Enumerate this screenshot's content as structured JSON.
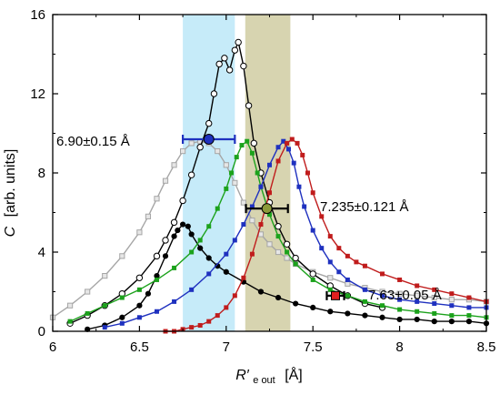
{
  "chart_data": {
    "type": "scatter",
    "xlabel": {
      "main": "R′",
      "sub": "e out",
      "unit": "[Å]"
    },
    "ylabel": {
      "main": "C",
      "unit": "[arb. units]"
    },
    "xlim": [
      6.0,
      8.5
    ],
    "ylim": [
      0,
      16
    ],
    "x_ticks": [
      "6",
      "6.5",
      "7",
      "7.5",
      "8",
      "8.5"
    ],
    "y_ticks": [
      "0",
      "4",
      "8",
      "12",
      "16"
    ],
    "bands": [
      {
        "x0": 6.75,
        "x1": 7.05,
        "color": "#c6ebf9"
      },
      {
        "x0": 7.11,
        "x1": 7.37,
        "color": "#d7d4b0"
      }
    ],
    "series": [
      {
        "color": "#a6a6a6",
        "marker": "square-open",
        "x": [
          6.0,
          6.1,
          6.2,
          6.3,
          6.4,
          6.5,
          6.55,
          6.6,
          6.65,
          6.7,
          6.75,
          6.8,
          6.85,
          6.9,
          6.95,
          7.0,
          7.05,
          7.1,
          7.15,
          7.2,
          7.25,
          7.3,
          7.35,
          7.4,
          7.5,
          7.6,
          7.7,
          7.8,
          7.9,
          8.0,
          8.1,
          8.2,
          8.3,
          8.4,
          8.5
        ],
        "y": [
          0.7,
          1.3,
          2.0,
          2.8,
          3.8,
          5.0,
          5.8,
          6.7,
          7.6,
          8.4,
          9.1,
          9.5,
          9.6,
          9.5,
          9.1,
          8.4,
          7.5,
          6.5,
          5.6,
          4.9,
          4.4,
          4.0,
          3.7,
          3.4,
          3.0,
          2.7,
          2.4,
          2.2,
          2.0,
          1.9,
          1.8,
          1.7,
          1.6,
          1.6,
          1.5
        ]
      },
      {
        "color": "#000000",
        "marker": "circle-filled",
        "x": [
          6.2,
          6.3,
          6.4,
          6.5,
          6.55,
          6.6,
          6.65,
          6.7,
          6.72,
          6.75,
          6.78,
          6.8,
          6.85,
          6.9,
          6.95,
          7.0,
          7.1,
          7.2,
          7.3,
          7.4,
          7.5,
          7.6,
          7.7,
          7.8,
          7.9,
          8.0,
          8.1,
          8.2,
          8.3,
          8.4,
          8.5
        ],
        "y": [
          0.1,
          0.3,
          0.7,
          1.3,
          1.9,
          2.8,
          3.8,
          4.8,
          5.1,
          5.4,
          5.3,
          4.9,
          4.2,
          3.7,
          3.3,
          3.0,
          2.5,
          2.0,
          1.7,
          1.4,
          1.2,
          1.0,
          0.9,
          0.8,
          0.7,
          0.6,
          0.6,
          0.5,
          0.5,
          0.5,
          0.4
        ]
      },
      {
        "color": "#000000",
        "marker": "circle-open",
        "x": [
          6.1,
          6.2,
          6.3,
          6.4,
          6.5,
          6.6,
          6.65,
          6.7,
          6.75,
          6.8,
          6.85,
          6.9,
          6.93,
          6.96,
          6.99,
          7.02,
          7.05,
          7.07,
          7.1,
          7.13,
          7.16,
          7.2,
          7.25,
          7.3,
          7.35,
          7.4,
          7.5,
          7.6,
          7.7,
          7.8,
          7.9
        ],
        "y": [
          0.4,
          0.8,
          1.3,
          1.9,
          2.7,
          3.8,
          4.6,
          5.5,
          6.6,
          7.9,
          9.3,
          10.5,
          12.0,
          13.5,
          13.8,
          13.2,
          14.2,
          14.6,
          13.4,
          11.4,
          9.5,
          8.0,
          6.5,
          5.3,
          4.4,
          3.7,
          2.9,
          2.3,
          1.8,
          1.4,
          1.2
        ]
      },
      {
        "color": "#1ca21c",
        "marker": "square-filled",
        "x": [
          6.1,
          6.2,
          6.3,
          6.4,
          6.5,
          6.6,
          6.7,
          6.8,
          6.85,
          6.9,
          6.95,
          7.0,
          7.03,
          7.06,
          7.09,
          7.12,
          7.15,
          7.18,
          7.2,
          7.25,
          7.3,
          7.35,
          7.4,
          7.5,
          7.6,
          7.7,
          7.8,
          7.9,
          8.0,
          8.1,
          8.2,
          8.3,
          8.4,
          8.5
        ],
        "y": [
          0.5,
          0.9,
          1.3,
          1.7,
          2.1,
          2.6,
          3.2,
          4.0,
          4.6,
          5.3,
          6.2,
          7.2,
          8.0,
          8.8,
          9.4,
          9.6,
          9.0,
          8.0,
          7.3,
          5.9,
          4.8,
          4.0,
          3.4,
          2.6,
          2.1,
          1.8,
          1.5,
          1.3,
          1.1,
          1.0,
          0.9,
          0.8,
          0.8,
          0.7
        ]
      },
      {
        "color": "#1f31bf",
        "marker": "square-filled",
        "x": [
          6.3,
          6.4,
          6.5,
          6.6,
          6.7,
          6.8,
          6.9,
          7.0,
          7.05,
          7.1,
          7.15,
          7.2,
          7.25,
          7.3,
          7.33,
          7.36,
          7.39,
          7.42,
          7.45,
          7.5,
          7.55,
          7.6,
          7.65,
          7.7,
          7.8,
          7.9,
          8.0,
          8.1,
          8.2,
          8.3,
          8.4,
          8.5
        ],
        "y": [
          0.2,
          0.4,
          0.7,
          1.0,
          1.5,
          2.1,
          2.9,
          3.9,
          4.6,
          5.4,
          6.3,
          7.3,
          8.4,
          9.3,
          9.6,
          9.2,
          8.5,
          7.3,
          6.3,
          5.1,
          4.2,
          3.5,
          3.0,
          2.6,
          2.1,
          1.8,
          1.6,
          1.5,
          1.4,
          1.3,
          1.2,
          1.2
        ]
      },
      {
        "color": "#c01c1c",
        "marker": "square-filled",
        "x": [
          6.65,
          6.7,
          6.75,
          6.8,
          6.85,
          6.9,
          6.95,
          7.0,
          7.05,
          7.1,
          7.15,
          7.2,
          7.25,
          7.3,
          7.35,
          7.38,
          7.41,
          7.44,
          7.47,
          7.5,
          7.55,
          7.6,
          7.65,
          7.7,
          7.75,
          7.8,
          7.9,
          8.0,
          8.1,
          8.2,
          8.3,
          8.4,
          8.5
        ],
        "y": [
          0.0,
          0.0,
          0.1,
          0.2,
          0.3,
          0.5,
          0.8,
          1.2,
          1.8,
          2.7,
          3.9,
          5.4,
          7.0,
          8.6,
          9.5,
          9.7,
          9.5,
          8.9,
          8.0,
          7.0,
          5.8,
          4.8,
          4.2,
          3.8,
          3.5,
          3.3,
          2.9,
          2.6,
          2.3,
          2.1,
          1.9,
          1.7,
          1.5
        ]
      }
    ],
    "error_points": [
      {
        "x": 6.9,
        "y": 9.7,
        "err": 0.15,
        "fill": "#1f31bf",
        "bar": "#1f31bf",
        "shape": "circle",
        "label": "6.90±0.15 Å"
      },
      {
        "x": 7.235,
        "y": 6.2,
        "err": 0.121,
        "fill": "#8c9a3a",
        "bar": "#000000",
        "shape": "circle",
        "label": "7.235±0.121 Å"
      },
      {
        "x": 7.63,
        "y": 1.8,
        "err": 0.05,
        "fill": "#e02020",
        "bar": "#000000",
        "shape": "square",
        "label": "7.63±0.05 Å"
      }
    ]
  }
}
